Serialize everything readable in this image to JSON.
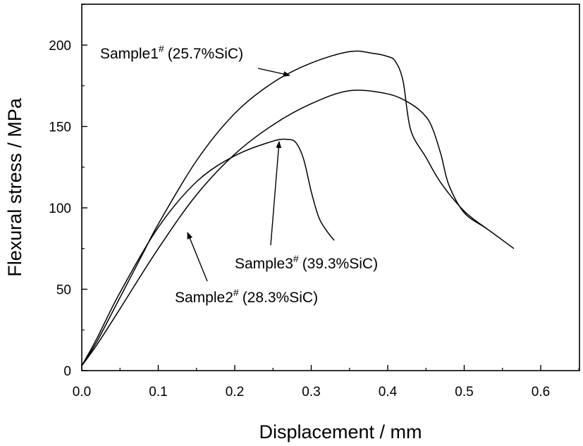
{
  "chart_data": {
    "type": "line",
    "xlabel": "Displacement / mm",
    "ylabel": "Flexural stress / MPa",
    "xlim": [
      0.0,
      0.65
    ],
    "ylim": [
      0,
      230
    ],
    "x_ticks": [
      "0.0",
      "0.1",
      "0.2",
      "0.3",
      "0.4",
      "0.5",
      "0.6"
    ],
    "y_ticks": [
      "0",
      "50",
      "100",
      "150",
      "200"
    ],
    "grid": false,
    "legend": "none",
    "series": [
      {
        "name": "Sample1",
        "label_suffix": "(25.7%SiC)",
        "x": [
          0.0,
          0.02,
          0.05,
          0.08,
          0.1,
          0.15,
          0.2,
          0.25,
          0.3,
          0.35,
          0.38,
          0.4,
          0.41,
          0.42,
          0.43,
          0.45,
          0.47,
          0.5,
          0.53
        ],
        "y": [
          3,
          18,
          45,
          72,
          90,
          129,
          158,
          177,
          189,
          196,
          195,
          193,
          190,
          178,
          148,
          131,
          115,
          98,
          87
        ]
      },
      {
        "name": "Sample2",
        "label_suffix": "(28.3%SiC)",
        "x": [
          0.0,
          0.02,
          0.05,
          0.1,
          0.15,
          0.2,
          0.25,
          0.3,
          0.35,
          0.4,
          0.43,
          0.45,
          0.46,
          0.47,
          0.48,
          0.5,
          0.53,
          0.565
        ],
        "y": [
          3,
          16,
          38,
          75,
          108,
          133,
          151,
          164,
          172,
          170,
          164,
          156,
          147,
          132,
          114,
          97,
          87,
          75
        ]
      },
      {
        "name": "Sample3",
        "label_suffix": "(39.3%SiC)",
        "x": [
          0.0,
          0.02,
          0.05,
          0.1,
          0.15,
          0.2,
          0.25,
          0.27,
          0.28,
          0.29,
          0.3,
          0.31,
          0.32,
          0.33
        ],
        "y": [
          3,
          20,
          48,
          88,
          116,
          132,
          141,
          142,
          140,
          130,
          110,
          94,
          86,
          80
        ]
      }
    ],
    "annotations": [
      {
        "series": "Sample1",
        "text_main": "Sample1",
        "text_sup": "#",
        "text_tail": "(25.7%SiC)"
      },
      {
        "series": "Sample3",
        "text_main": "Sample3",
        "text_sup": "#",
        "text_tail": "(39.3%SiC)"
      },
      {
        "series": "Sample2",
        "text_main": "Sample2",
        "text_sup": "#",
        "text_tail": "(28.3%SiC)"
      }
    ]
  }
}
